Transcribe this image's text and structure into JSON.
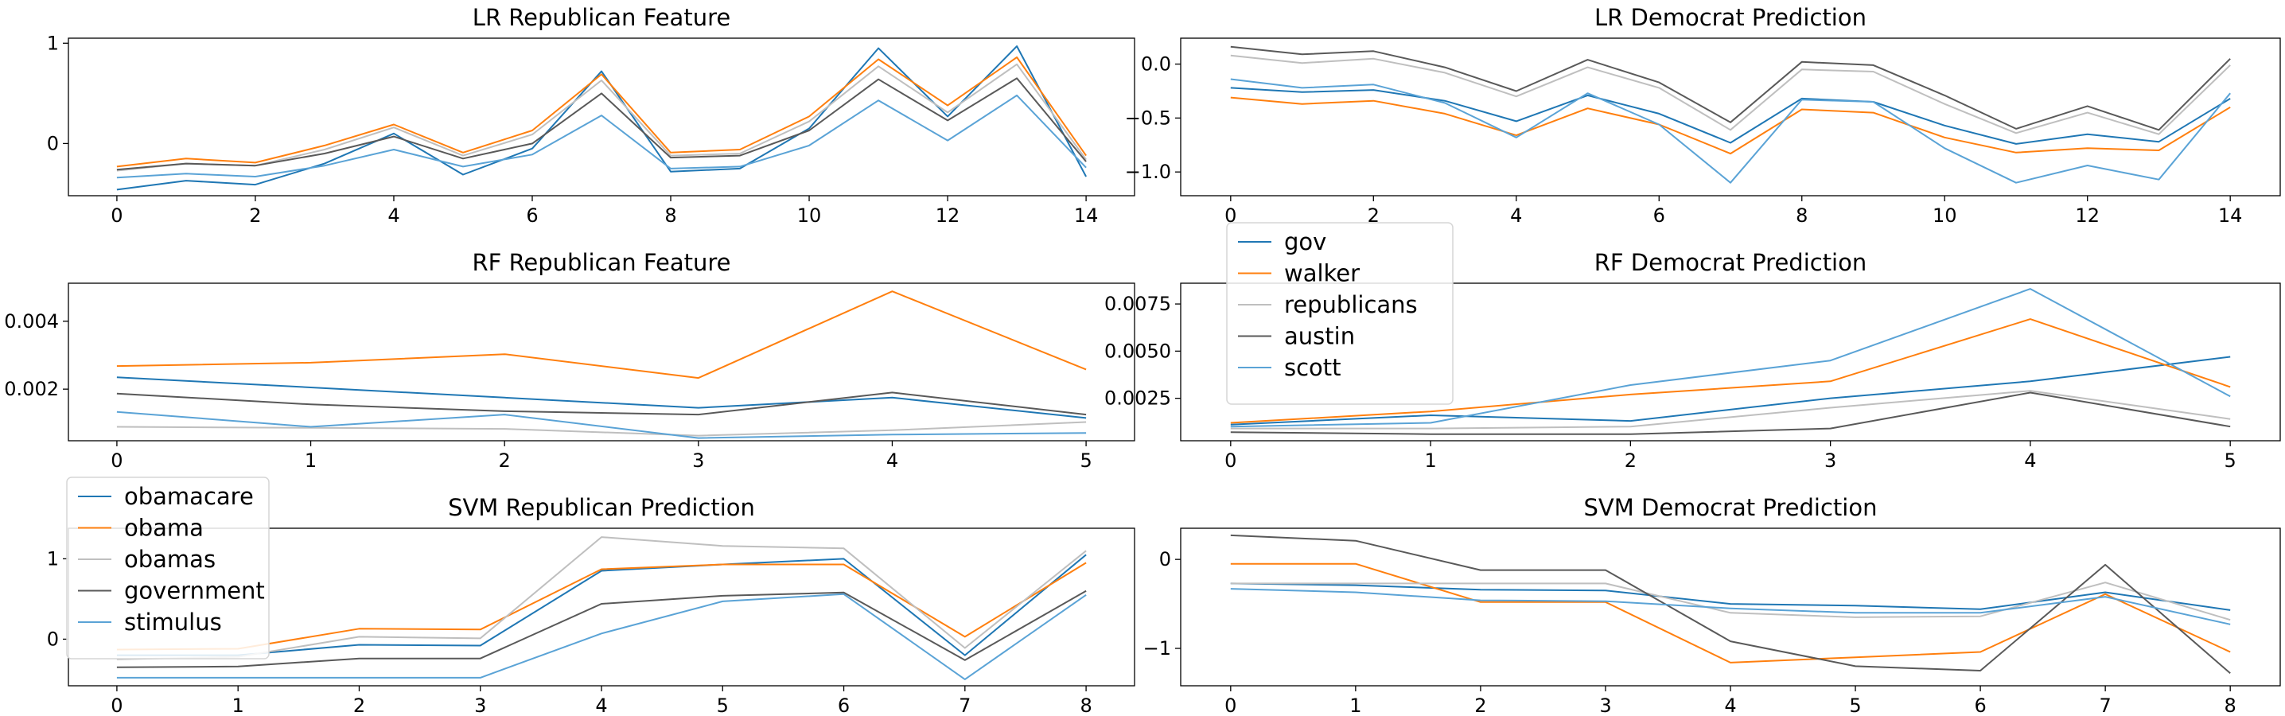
{
  "colors": {
    "gov": "#1f77b4",
    "walker": "#ff7f0e",
    "republicans": "#bfbfbf",
    "austin": "#595959",
    "scott": "#5aa3d6",
    "obamacare": "#1f77b4",
    "obama": "#ff7f0e",
    "obamas": "#bfbfbf",
    "government": "#595959",
    "stimulus": "#5aa3d6"
  },
  "chart_data": [
    {
      "type": "line",
      "title": "LR Republican Feature",
      "x": [
        0,
        1,
        2,
        3,
        4,
        5,
        6,
        7,
        8,
        9,
        10,
        11,
        12,
        13,
        14
      ],
      "xticks": [
        0,
        2,
        4,
        6,
        8,
        10,
        12,
        14
      ],
      "yticks": [
        0,
        1
      ],
      "xlim": [
        -0.7,
        14.7
      ],
      "ylim": [
        -0.52,
        1.05
      ],
      "series": [
        {
          "key": "obamacare",
          "values": [
            -0.46,
            -0.37,
            -0.41,
            -0.2,
            0.1,
            -0.31,
            -0.05,
            0.72,
            -0.28,
            -0.25,
            0.15,
            0.95,
            0.27,
            0.97,
            -0.33
          ]
        },
        {
          "key": "obama",
          "values": [
            -0.23,
            -0.15,
            -0.19,
            -0.02,
            0.19,
            -0.09,
            0.13,
            0.69,
            -0.09,
            -0.06,
            0.27,
            0.84,
            0.38,
            0.86,
            -0.12
          ]
        },
        {
          "key": "obamas",
          "values": [
            -0.27,
            -0.2,
            -0.22,
            -0.06,
            0.16,
            -0.12,
            0.09,
            0.63,
            -0.12,
            -0.1,
            0.22,
            0.77,
            0.31,
            0.79,
            -0.16
          ]
        },
        {
          "key": "government",
          "values": [
            -0.26,
            -0.2,
            -0.22,
            -0.1,
            0.07,
            -0.15,
            0.0,
            0.5,
            -0.14,
            -0.12,
            0.13,
            0.64,
            0.23,
            0.65,
            -0.18
          ]
        },
        {
          "key": "stimulus",
          "values": [
            -0.34,
            -0.3,
            -0.33,
            -0.22,
            -0.06,
            -0.23,
            -0.11,
            0.28,
            -0.25,
            -0.23,
            -0.02,
            0.43,
            0.03,
            0.48,
            -0.24
          ]
        }
      ]
    },
    {
      "type": "line",
      "title": "LR Democrat Prediction",
      "x": [
        0,
        1,
        2,
        3,
        4,
        5,
        6,
        7,
        8,
        9,
        10,
        11,
        12,
        13,
        14
      ],
      "xticks": [
        0,
        2,
        4,
        6,
        8,
        10,
        12,
        14
      ],
      "yticks": [
        0.0,
        -0.5,
        -1.0
      ],
      "ytick_labels": [
        "0.0",
        "−0.5",
        "−1.0"
      ],
      "xlim": [
        -0.7,
        14.7
      ],
      "ylim": [
        -1.22,
        0.24
      ],
      "series": [
        {
          "key": "gov",
          "values": [
            -0.22,
            -0.26,
            -0.24,
            -0.34,
            -0.53,
            -0.29,
            -0.46,
            -0.73,
            -0.32,
            -0.35,
            -0.57,
            -0.74,
            -0.65,
            -0.72,
            -0.32
          ]
        },
        {
          "key": "walker",
          "values": [
            -0.31,
            -0.37,
            -0.34,
            -0.46,
            -0.66,
            -0.41,
            -0.56,
            -0.83,
            -0.42,
            -0.45,
            -0.68,
            -0.82,
            -0.78,
            -0.8,
            -0.4
          ]
        },
        {
          "key": "republicans",
          "values": [
            0.08,
            0.01,
            0.05,
            -0.08,
            -0.3,
            -0.03,
            -0.22,
            -0.61,
            -0.05,
            -0.07,
            -0.37,
            -0.64,
            -0.45,
            -0.65,
            -0.01
          ]
        },
        {
          "key": "austin",
          "values": [
            0.16,
            0.09,
            0.12,
            -0.03,
            -0.25,
            0.04,
            -0.17,
            -0.54,
            0.02,
            -0.01,
            -0.29,
            -0.6,
            -0.39,
            -0.61,
            0.05
          ]
        },
        {
          "key": "scott",
          "values": [
            -0.14,
            -0.22,
            -0.19,
            -0.36,
            -0.68,
            -0.27,
            -0.56,
            -1.1,
            -0.33,
            -0.35,
            -0.78,
            -1.1,
            -0.94,
            -1.07,
            -0.27
          ]
        }
      ]
    },
    {
      "type": "line",
      "title": "RF Republican Feature",
      "x": [
        0,
        1,
        2,
        3,
        4,
        5
      ],
      "xticks": [
        0,
        1,
        2,
        3,
        4,
        5
      ],
      "yticks": [
        0.002,
        0.004
      ],
      "ytick_labels": [
        "0.002",
        "0.004"
      ],
      "xlim": [
        -0.25,
        5.25
      ],
      "ylim": [
        0.00048,
        0.00512
      ],
      "series": [
        {
          "key": "obamacare",
          "values": [
            0.00235,
            0.00205,
            0.00175,
            0.00145,
            0.00175,
            0.00115
          ]
        },
        {
          "key": "obama",
          "values": [
            0.00268,
            0.00278,
            0.00303,
            0.00233,
            0.00488,
            0.00258
          ]
        },
        {
          "key": "obamas",
          "values": [
            0.00089,
            0.00086,
            0.00083,
            0.00063,
            0.00079,
            0.00103
          ]
        },
        {
          "key": "government",
          "values": [
            0.00187,
            0.00155,
            0.00135,
            0.00125,
            0.0019,
            0.00125
          ]
        },
        {
          "key": "stimulus",
          "values": [
            0.00133,
            0.00089,
            0.00125,
            0.00056,
            0.00066,
            0.00071
          ]
        }
      ]
    },
    {
      "type": "line",
      "title": "RF Democrat Prediction",
      "x": [
        0,
        1,
        2,
        3,
        4,
        5
      ],
      "xticks": [
        0,
        1,
        2,
        3,
        4,
        5
      ],
      "yticks": [
        0.0025,
        0.005,
        0.0075
      ],
      "ytick_labels": [
        "0.0025",
        "0.0050",
        "0.0075"
      ],
      "xlim": [
        -0.25,
        5.25
      ],
      "ylim": [
        0.00025,
        0.0086
      ],
      "series": [
        {
          "key": "gov",
          "values": [
            0.0011,
            0.0016,
            0.0013,
            0.0025,
            0.0034,
            0.0047
          ]
        },
        {
          "key": "walker",
          "values": [
            0.0012,
            0.0018,
            0.0027,
            0.0034,
            0.0067,
            0.0031
          ]
        },
        {
          "key": "republicans",
          "values": [
            0.0009,
            0.0009,
            0.001,
            0.002,
            0.0029,
            0.0014
          ]
        },
        {
          "key": "austin",
          "values": [
            0.0007,
            0.0006,
            0.0006,
            0.0009,
            0.0028,
            0.001
          ]
        },
        {
          "key": "scott",
          "values": [
            0.001,
            0.0012,
            0.0032,
            0.0045,
            0.0083,
            0.0026
          ]
        }
      ]
    },
    {
      "type": "line",
      "title": "SVM Republican Prediction",
      "x": [
        0,
        1,
        2,
        3,
        4,
        5,
        6,
        7,
        8
      ],
      "xticks": [
        0,
        1,
        2,
        3,
        4,
        5,
        6,
        7,
        8
      ],
      "yticks": [
        0,
        1
      ],
      "xlim": [
        -0.4,
        8.4
      ],
      "ylim": [
        -0.58,
        1.38
      ],
      "series": [
        {
          "key": "obamacare",
          "values": [
            -0.2,
            -0.2,
            -0.07,
            -0.08,
            0.85,
            0.93,
            1.0,
            -0.2,
            1.05
          ]
        },
        {
          "key": "obama",
          "values": [
            -0.13,
            -0.12,
            0.13,
            0.12,
            0.87,
            0.93,
            0.93,
            0.03,
            0.95
          ]
        },
        {
          "key": "obamas",
          "values": [
            -0.25,
            -0.22,
            0.03,
            0.01,
            1.27,
            1.16,
            1.13,
            -0.11,
            1.1
          ]
        },
        {
          "key": "government",
          "values": [
            -0.35,
            -0.34,
            -0.24,
            -0.24,
            0.44,
            0.54,
            0.58,
            -0.26,
            0.6
          ]
        },
        {
          "key": "stimulus",
          "values": [
            -0.48,
            -0.48,
            -0.48,
            -0.48,
            0.07,
            0.47,
            0.56,
            -0.5,
            0.55
          ]
        }
      ]
    },
    {
      "type": "line",
      "title": "SVM Democrat Prediction",
      "x": [
        0,
        1,
        2,
        3,
        4,
        5,
        6,
        7,
        8
      ],
      "xticks": [
        0,
        1,
        2,
        3,
        4,
        5,
        6,
        7,
        8
      ],
      "yticks": [
        0,
        -1
      ],
      "ytick_labels": [
        "0",
        "−1"
      ],
      "xlim": [
        -0.4,
        8.4
      ],
      "ylim": [
        -1.42,
        0.35
      ],
      "series": [
        {
          "key": "gov",
          "values": [
            -0.27,
            -0.29,
            -0.34,
            -0.35,
            -0.5,
            -0.52,
            -0.56,
            -0.37,
            -0.57
          ]
        },
        {
          "key": "walker",
          "values": [
            -0.05,
            -0.05,
            -0.48,
            -0.48,
            -1.16,
            -1.1,
            -1.04,
            -0.39,
            -1.04
          ]
        },
        {
          "key": "republicans",
          "values": [
            -0.27,
            -0.27,
            -0.27,
            -0.27,
            -0.6,
            -0.65,
            -0.64,
            -0.26,
            -0.68
          ]
        },
        {
          "key": "austin",
          "values": [
            0.27,
            0.21,
            -0.12,
            -0.12,
            -0.92,
            -1.2,
            -1.25,
            -0.06,
            -1.28
          ]
        },
        {
          "key": "scott",
          "values": [
            -0.33,
            -0.37,
            -0.46,
            -0.47,
            -0.55,
            -0.6,
            -0.6,
            -0.42,
            -0.73
          ]
        }
      ]
    }
  ],
  "legends": {
    "democrat": {
      "label": "gov / walker / republicans / austin / scott",
      "entries": [
        {
          "key": "gov",
          "label": "gov"
        },
        {
          "key": "walker",
          "label": "walker"
        },
        {
          "key": "republicans",
          "label": "republicans"
        },
        {
          "key": "austin",
          "label": "austin"
        },
        {
          "key": "scott",
          "label": "scott"
        }
      ]
    },
    "republican": {
      "label": "obamacare / obama / obamas / government / stimulus",
      "entries": [
        {
          "key": "obamacare",
          "label": "obamacare"
        },
        {
          "key": "obama",
          "label": "obama"
        },
        {
          "key": "obamas",
          "label": "obamas"
        },
        {
          "key": "government",
          "label": "government"
        },
        {
          "key": "stimulus",
          "label": "stimulus"
        }
      ]
    }
  }
}
